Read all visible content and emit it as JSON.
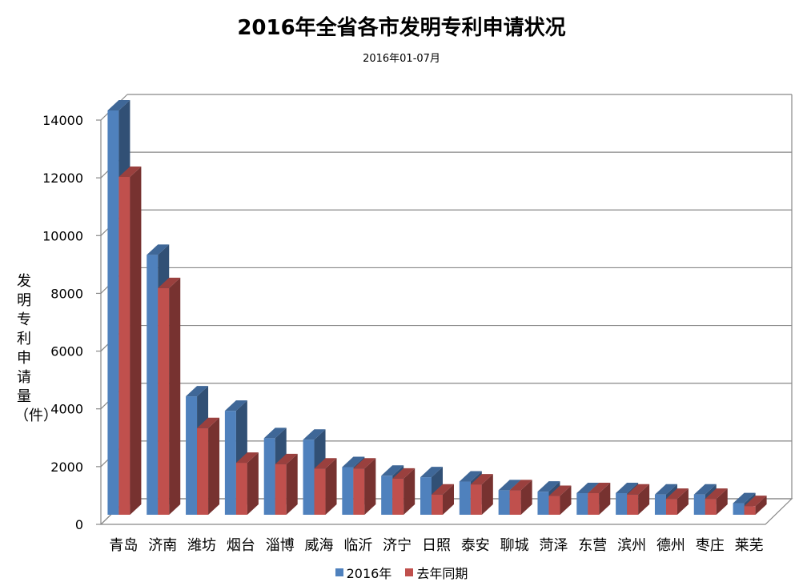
{
  "title": "2016年全省各市发明专利申请状况",
  "subtitle": "2016年01-07月",
  "chart_data": {
    "type": "bar",
    "title": "2016年全省各市发明专利申请状况",
    "subtitle": "2016年01-07月",
    "ylabel": "发明专利申请量（件）",
    "xlabel": "",
    "ylim": [
      0,
      14000
    ],
    "yticks": [
      0,
      2000,
      4000,
      6000,
      8000,
      10000,
      12000,
      14000
    ],
    "grid": true,
    "legend": "bottom",
    "categories": [
      "青岛",
      "济南",
      "潍坊",
      "烟台",
      "淄博",
      "威海",
      "临沂",
      "济宁",
      "日照",
      "泰安",
      "聊城",
      "菏泽",
      "东营",
      "滨州",
      "德州",
      "枣庄",
      "莱芜"
    ],
    "series": [
      {
        "name": "2016年",
        "color": "#4F81BD",
        "values": [
          14000,
          9000,
          4100,
          3600,
          2650,
          2600,
          1650,
          1350,
          1300,
          1150,
          850,
          800,
          750,
          750,
          700,
          700,
          400
        ]
      },
      {
        "name": "去年同期",
        "color": "#C0504D",
        "values": [
          11700,
          7850,
          3000,
          1800,
          1750,
          1600,
          1600,
          1250,
          700,
          1050,
          850,
          650,
          750,
          700,
          550,
          550,
          300
        ]
      }
    ]
  }
}
